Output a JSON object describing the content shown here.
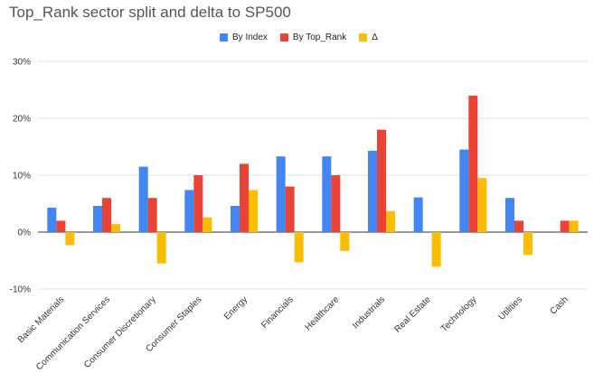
{
  "chart_data": {
    "type": "bar",
    "title": "Top_Rank sector split and delta to SP500",
    "xlabel": "",
    "ylabel": "",
    "ylim": [
      -10,
      30
    ],
    "y_ticks": [
      "-10%",
      "0%",
      "10%",
      "20%",
      "30%"
    ],
    "y_tick_values": [
      -10,
      0,
      10,
      20,
      30
    ],
    "legend_position": "top",
    "grid": true,
    "categories": [
      "Basic Materials",
      "Communication Services",
      "Consumer Discretionary",
      "Consumer Staples",
      "Energy",
      "Financials",
      "Healthcare",
      "Industrials",
      "Real Estate",
      "Technology",
      "Utilities",
      "Cash"
    ],
    "series": [
      {
        "name": "By Index",
        "color": "#4285f4",
        "values": [
          4.3,
          4.6,
          11.5,
          7.4,
          4.6,
          13.3,
          13.3,
          14.3,
          6.1,
          14.5,
          6.0,
          0
        ]
      },
      {
        "name": "By Top_Rank",
        "color": "#ea4335",
        "values": [
          2.0,
          6.0,
          6.0,
          10.0,
          12.0,
          8.0,
          10.0,
          18.0,
          0,
          24.0,
          2.0,
          2.0
        ]
      },
      {
        "name": "Δ",
        "color": "#fbbc04",
        "values": [
          -2.3,
          1.4,
          -5.5,
          2.6,
          7.4,
          -5.3,
          -3.3,
          3.7,
          -6.1,
          9.5,
          -4.0,
          2.0
        ]
      }
    ]
  }
}
